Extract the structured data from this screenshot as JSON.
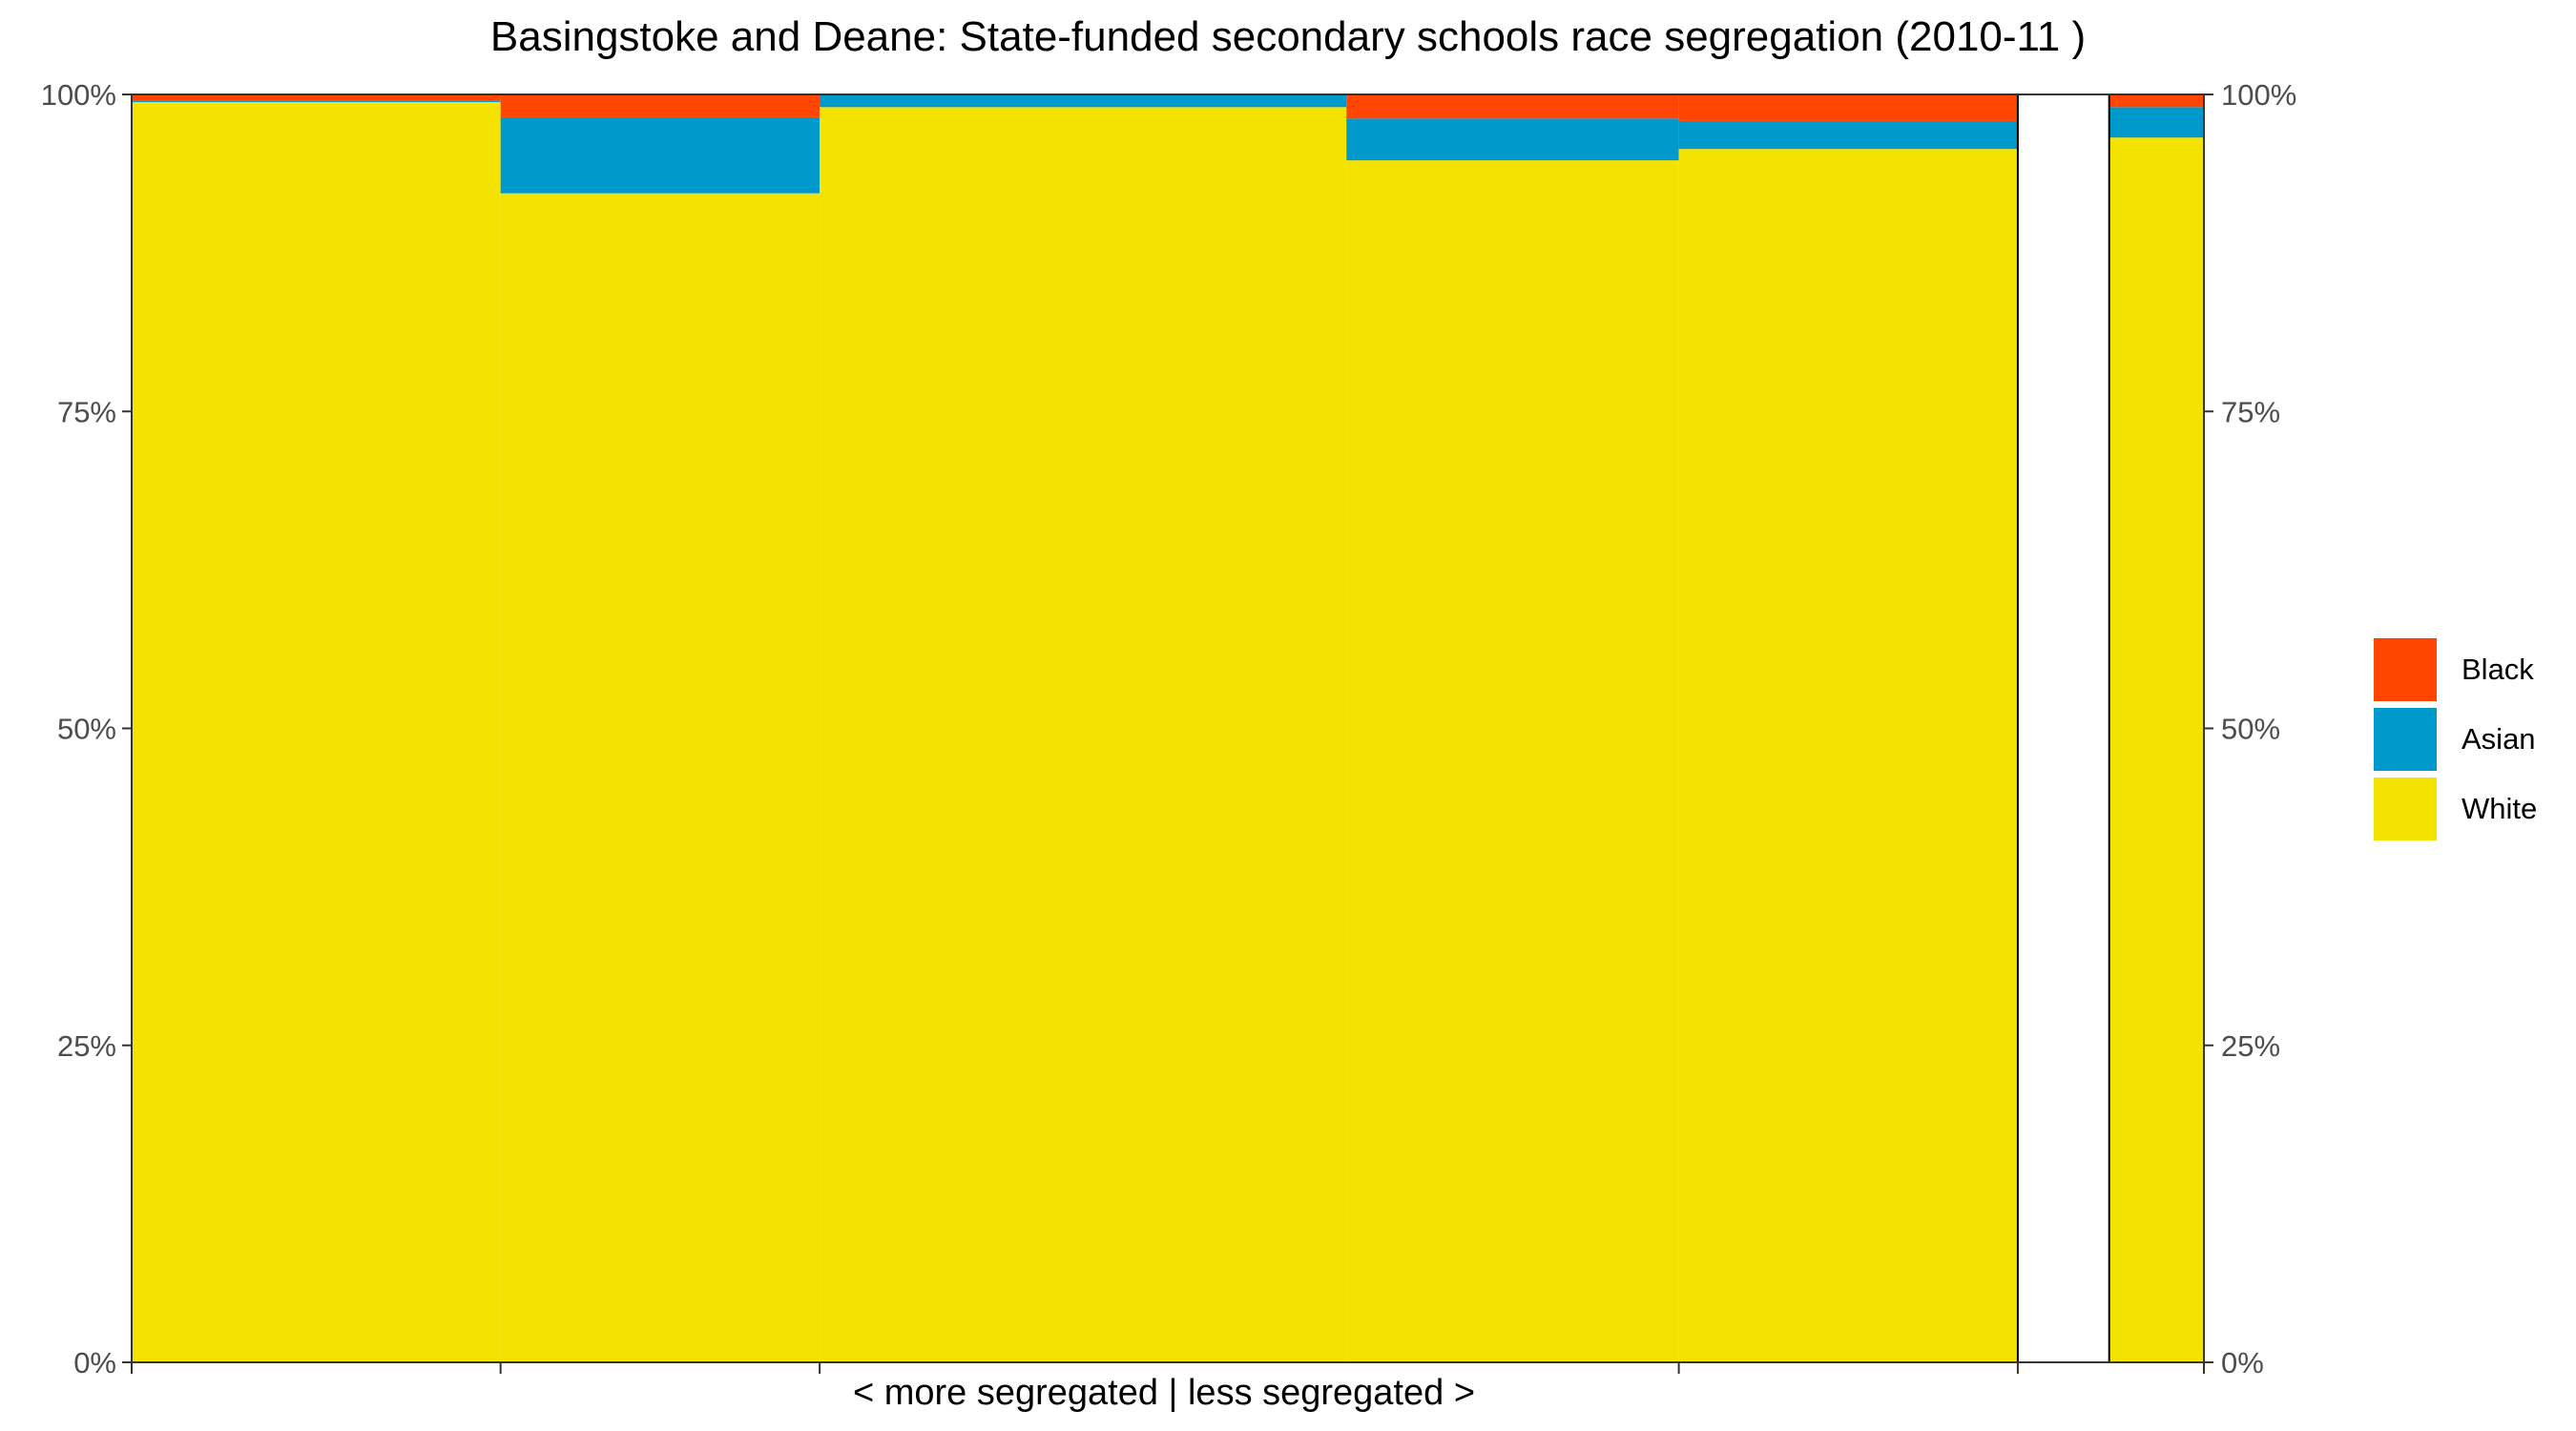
{
  "chart_data": {
    "type": "bar",
    "title": "Basingstoke and Deane: State-funded secondary schools race segregation (2010-11 )",
    "xlabel": "< more segregated | less segregated >",
    "ylabel": "",
    "ylim": [
      0,
      100
    ],
    "y_ticks": [
      "0%",
      "25%",
      "50%",
      "75%",
      "100%"
    ],
    "y_tick_values": [
      0,
      25,
      50,
      75,
      100
    ],
    "secondary_y_axis": true,
    "legend": "right",
    "grid": false,
    "series": [
      {
        "name": "Black",
        "color": "#ff4500"
      },
      {
        "name": "Asian",
        "color": "#0099cc"
      },
      {
        "name": "White",
        "color": "#f4e300"
      }
    ],
    "segment_widths": [
      22.2,
      19.2,
      31.7,
      20.0,
      20.4,
      5.5,
      5.7
    ],
    "bars": [
      {
        "White": 99.4,
        "Asian": 0.1,
        "Black": 0.5
      },
      {
        "White": 92.2,
        "Asian": 6.0,
        "Black": 1.8
      },
      {
        "White": 99.0,
        "Asian": 1.0,
        "Black": 0.0
      },
      {
        "White": 94.8,
        "Asian": 3.3,
        "Black": 1.9
      },
      {
        "White": 95.7,
        "Asian": 2.2,
        "Black": 2.1
      },
      {
        "White": 0,
        "Asian": 0,
        "Black": 0
      },
      {
        "White": 96.6,
        "Asian": 2.4,
        "Black": 1.0
      }
    ]
  }
}
